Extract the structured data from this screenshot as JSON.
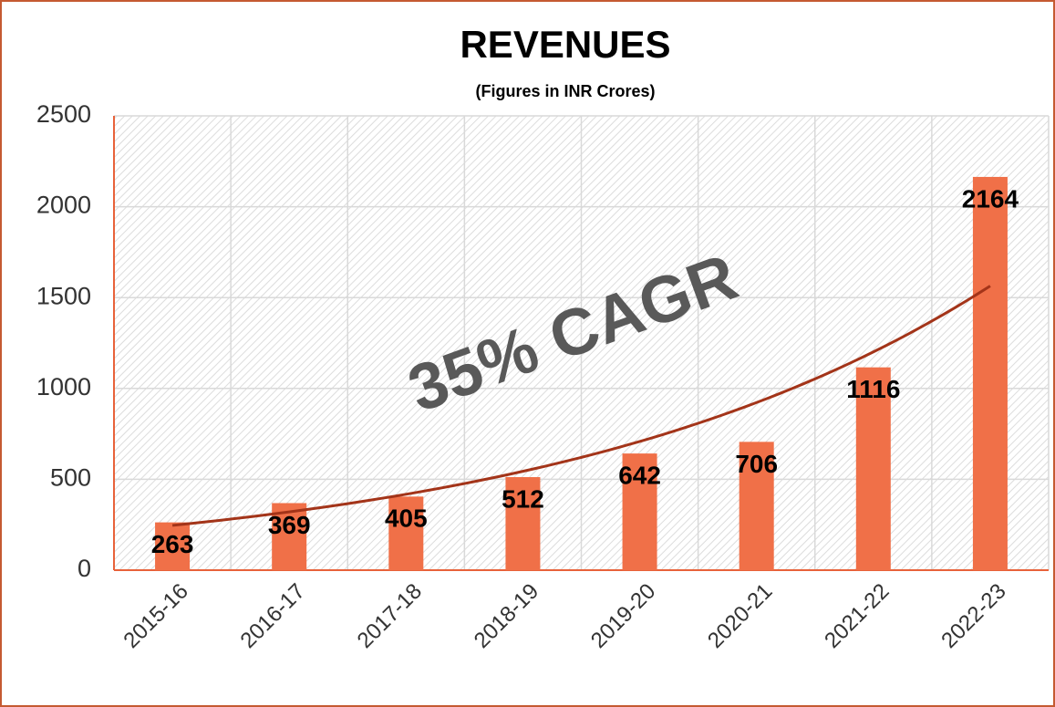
{
  "chart_data": {
    "type": "bar",
    "title": "REVENUES",
    "subtitle": "(Figures in INR Crores)",
    "categories": [
      "2015-16",
      "2016-17",
      "2017-18",
      "2018-19",
      "2019-20",
      "2020-21",
      "2021-22",
      "2022-23"
    ],
    "values": [
      263,
      369,
      405,
      512,
      642,
      706,
      1116,
      2164
    ],
    "color": "#f07048",
    "ylim": [
      0,
      2500
    ],
    "yticks": [
      0,
      500,
      1000,
      1500,
      2000,
      2500
    ],
    "grid": true,
    "trendline": "exponential",
    "trendline_color": "#a33419",
    "annotation": "35% CAGR"
  }
}
